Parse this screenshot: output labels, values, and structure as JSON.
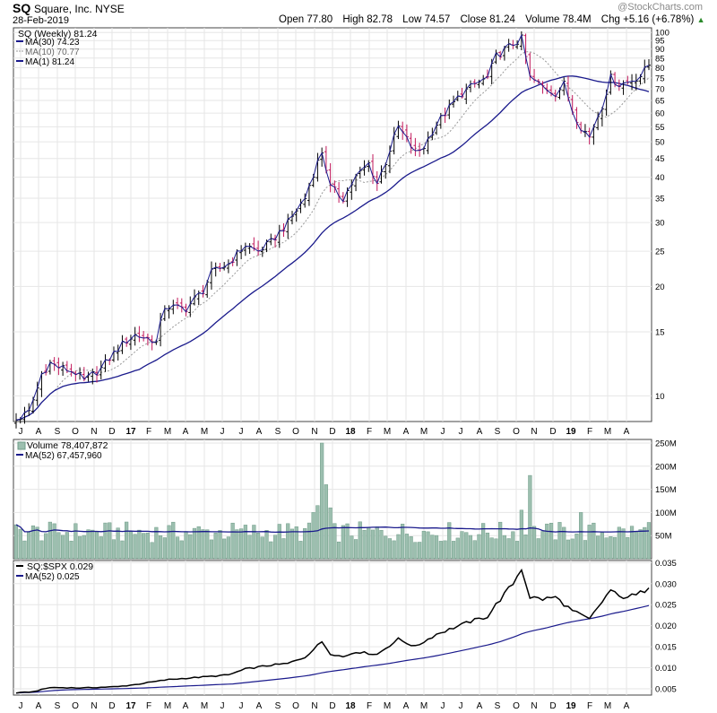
{
  "header": {
    "symbol": "SQ",
    "company": "Square, Inc.",
    "exchange": "NYSE",
    "date": "28-Feb-2019",
    "open_label": "Open",
    "open": "77.80",
    "high_label": "High",
    "high": "82.78",
    "low_label": "Low",
    "low": "74.57",
    "close_label": "Close",
    "close": "81.24",
    "volume_label": "Volume",
    "volume": "78.4M",
    "chg_label": "Chg",
    "chg": "+5.16 (+6.78%)",
    "watermark": "@StockCharts.com"
  },
  "colors": {
    "up": "#000000",
    "down": "#c2185b",
    "ma": "#1a1a8c",
    "ma10": "#999999",
    "volume_bar": "#9cbfaf",
    "volume_edge": "#6f9c88",
    "grid": "#e6e6e6",
    "line": "#000000"
  },
  "legend": {
    "price": [
      "SQ (Weekly) 81.24",
      "MA(30) 74.23",
      "MA(10) 70.77",
      "MA(1) 81.24"
    ],
    "volume": [
      "Volume 78,407,872",
      "MA(52) 67,457,960"
    ],
    "ratio": [
      "SQ:$SPX 0.029",
      "MA(52) 0.025"
    ]
  },
  "chart_data": [
    {
      "type": "line",
      "title": "SQ (Weekly) price, log scale",
      "x_labels": [
        "J",
        "A",
        "S",
        "O",
        "N",
        "D",
        "17",
        "F",
        "M",
        "A",
        "M",
        "J",
        "J",
        "A",
        "S",
        "O",
        "N",
        "D",
        "18",
        "F",
        "M",
        "A",
        "M",
        "J",
        "J",
        "A",
        "S",
        "O",
        "N",
        "D",
        "19",
        "F",
        "M",
        "A"
      ],
      "y_ticks": [
        10,
        15,
        20,
        25,
        30,
        35,
        40,
        45,
        50,
        55,
        60,
        65,
        70,
        75,
        80,
        85,
        90,
        95,
        100
      ],
      "ylim": [
        8.5,
        103
      ],
      "anchors": [
        [
          0,
          8.6
        ],
        [
          3,
          9.0
        ],
        [
          5,
          10.5
        ],
        [
          6,
          11.5
        ],
        [
          8,
          12.3
        ],
        [
          10,
          12.0
        ],
        [
          14,
          11.6
        ],
        [
          16,
          11.0
        ],
        [
          20,
          11.9
        ],
        [
          24,
          13.5
        ],
        [
          26,
          14.2
        ],
        [
          28,
          14.7
        ],
        [
          32,
          14.3
        ],
        [
          33,
          14.0
        ],
        [
          35,
          17.6
        ],
        [
          40,
          17.4
        ],
        [
          44,
          19.5
        ],
        [
          46,
          21.8
        ],
        [
          50,
          23.1
        ],
        [
          54,
          26.0
        ],
        [
          57,
          25.0
        ],
        [
          60,
          26.5
        ],
        [
          64,
          29.9
        ],
        [
          68,
          35.0
        ],
        [
          72,
          47.0
        ],
        [
          74,
          37.5
        ],
        [
          77,
          35.0
        ],
        [
          80,
          40.0
        ],
        [
          83,
          43.5
        ],
        [
          85,
          38.5
        ],
        [
          87,
          44.0
        ],
        [
          90,
          55.0
        ],
        [
          94,
          46.5
        ],
        [
          96,
          48.5
        ],
        [
          99,
          56.0
        ],
        [
          102,
          62.0
        ],
        [
          105,
          68.0
        ],
        [
          108,
          72.0
        ],
        [
          111,
          75.0
        ],
        [
          113,
          86.0
        ],
        [
          117,
          93.0
        ],
        [
          119,
          96.0
        ],
        [
          121,
          75.0
        ],
        [
          124,
          71.0
        ],
        [
          127,
          68.0
        ],
        [
          129,
          72.0
        ],
        [
          131,
          61.0
        ],
        [
          133,
          55.0
        ],
        [
          135,
          51.5
        ],
        [
          138,
          63.0
        ],
        [
          140,
          75.0
        ],
        [
          142,
          72.0
        ],
        [
          144,
          73.0
        ],
        [
          147,
          76.0
        ],
        [
          149,
          81.24
        ]
      ],
      "ma30_end": 74.23,
      "ma10_end": 70.77,
      "last": 81.24
    },
    {
      "type": "bar",
      "title": "Volume",
      "y_ticks": [
        "50M",
        "100M",
        "150M",
        "200M",
        "250M"
      ],
      "ylim": [
        0,
        250
      ],
      "unit": "M",
      "ma52_end": 67.46,
      "last": 78.4,
      "highlights": [
        [
          72,
          250
        ],
        [
          73,
          160
        ],
        [
          71,
          115
        ],
        [
          70,
          100
        ],
        [
          121,
          180
        ],
        [
          119,
          105
        ],
        [
          74,
          110
        ],
        [
          133,
          100
        ]
      ]
    },
    {
      "type": "line",
      "title": "SQ:$SPX ratio",
      "y_ticks": [
        "0.005",
        "0.010",
        "0.015",
        "0.020",
        "0.025",
        "0.030",
        "0.035"
      ],
      "ylim": [
        0.0035,
        0.0355
      ],
      "anchors": [
        [
          0,
          0.004
        ],
        [
          4,
          0.0043
        ],
        [
          8,
          0.0053
        ],
        [
          16,
          0.0052
        ],
        [
          24,
          0.0055
        ],
        [
          28,
          0.006
        ],
        [
          36,
          0.0072
        ],
        [
          44,
          0.0078
        ],
        [
          50,
          0.0083
        ],
        [
          54,
          0.0097
        ],
        [
          60,
          0.0106
        ],
        [
          64,
          0.011
        ],
        [
          68,
          0.0125
        ],
        [
          72,
          0.0162
        ],
        [
          74,
          0.0134
        ],
        [
          77,
          0.0126
        ],
        [
          80,
          0.0138
        ],
        [
          85,
          0.0132
        ],
        [
          90,
          0.0168
        ],
        [
          94,
          0.015
        ],
        [
          99,
          0.018
        ],
        [
          103,
          0.0195
        ],
        [
          107,
          0.021
        ],
        [
          111,
          0.0222
        ],
        [
          113,
          0.025
        ],
        [
          117,
          0.03
        ],
        [
          119,
          0.0336
        ],
        [
          121,
          0.0268
        ],
        [
          124,
          0.0263
        ],
        [
          127,
          0.0268
        ],
        [
          131,
          0.0235
        ],
        [
          135,
          0.0215
        ],
        [
          140,
          0.0285
        ],
        [
          142,
          0.0268
        ],
        [
          146,
          0.0272
        ],
        [
          149,
          0.029
        ]
      ],
      "ma52_end": 0.025,
      "last": 0.029
    }
  ]
}
